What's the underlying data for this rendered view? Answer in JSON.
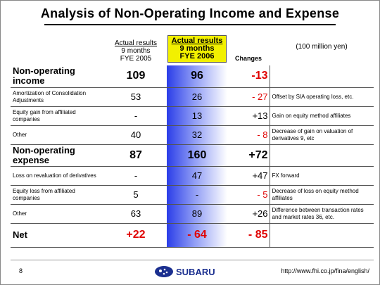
{
  "title": "Analysis of Non-Operating Income and Expense",
  "table": {
    "header": [
      "Actual results",
      "9 months",
      "FYE 2005",
      "Actual results",
      "9 months",
      "FYE 2006",
      "Changes",
      "(100 million yen)"
    ],
    "rows": [
      {
        "kind": "total",
        "label": "Non-operating income",
        "cells": [
          "109",
          "96",
          "-13",
          ""
        ]
      },
      {
        "kind": "item",
        "label": "Amortization of Consolidation Adjustments",
        "cells": [
          "53",
          "26",
          "- 27",
          "Offset by SIA operating loss, etc."
        ]
      },
      {
        "kind": "item",
        "label": "Equity gain from affiliated companies",
        "cells": [
          "-",
          "13",
          "+13",
          "Gain on equity method affiliates"
        ]
      },
      {
        "kind": "item",
        "label": "Other",
        "cells": [
          "40",
          "32",
          "- 8",
          "Decrease of gain on valuation of derivatives 9, etc"
        ]
      },
      {
        "kind": "total",
        "label": "Non-operating expense",
        "cells": [
          "87",
          "160",
          "+72",
          ""
        ]
      },
      {
        "kind": "item",
        "label": "Loss on revaluation of derivatives",
        "cells": [
          "-",
          "47",
          "+47",
          "FX forward"
        ]
      },
      {
        "kind": "item",
        "label": "Equity loss from affiliated companies",
        "cells": [
          "5",
          "-",
          "- 5",
          "Decrease of loss on equity method affiliates"
        ]
      },
      {
        "kind": "item",
        "label": "Other",
        "cells": [
          "63",
          "89",
          "+26",
          "Difference between transaction rates and market rates 36, etc."
        ]
      },
      {
        "kind": "net",
        "label": "Net",
        "cells": [
          "+22",
          "- 64",
          "- 85",
          ""
        ]
      }
    ]
  },
  "footer": {
    "page": "8",
    "logo": "SUBARU",
    "url": "http://www.fhi.co.jp/fina/english/"
  }
}
